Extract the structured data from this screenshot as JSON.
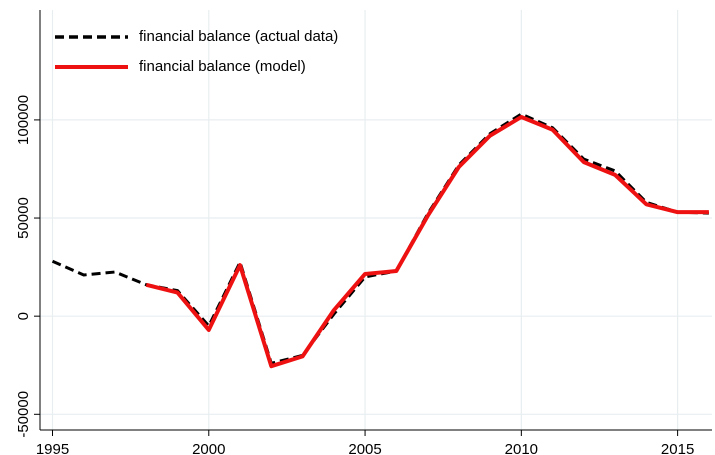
{
  "chart_data": {
    "type": "line",
    "x": [
      1995,
      1996,
      1997,
      1998,
      1999,
      2000,
      2001,
      2002,
      2003,
      2004,
      2005,
      2006,
      2007,
      2008,
      2009,
      2010,
      2011,
      2012,
      2013,
      2014,
      2015,
      2016
    ],
    "series": [
      {
        "name": "financial balance (actual data)",
        "color": "#000000",
        "line_style": "dashed",
        "values": [
          28000,
          21000,
          22500,
          16000,
          13000,
          -5000,
          27500,
          -24000,
          -20000,
          1000,
          20000,
          23000,
          52000,
          77000,
          93000,
          103000,
          96000,
          80000,
          74000,
          58000,
          53000,
          52500
        ]
      },
      {
        "name": "financial balance (model)",
        "color": "#ee1111",
        "line_style": "solid",
        "values": [
          null,
          null,
          null,
          16000,
          12000,
          -7000,
          26000,
          -25500,
          -20500,
          3000,
          21500,
          23000,
          51000,
          76000,
          92000,
          101500,
          95000,
          78500,
          72000,
          57000,
          53000,
          53000
        ]
      }
    ],
    "xlim": [
      1994.6,
      2016.1
    ],
    "xticks": [
      1995,
      2000,
      2005,
      2010,
      2015
    ],
    "ylim": [
      -58000,
      156000
    ],
    "yticks": [
      -50000,
      0,
      50000,
      100000
    ],
    "grid": true,
    "legend": "top-left"
  }
}
